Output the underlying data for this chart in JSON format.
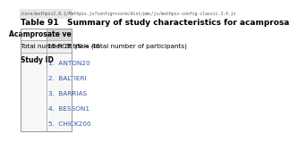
{
  "title": "Table 91   Summary of study characteristics for acamprosa",
  "header_col": "Acamprosate ve",
  "row1_label": "Total number of trials (total number of participants)",
  "row1_value": "19 RCTs (N = 46",
  "row2_label": "Study ID",
  "study_ids": [
    "1.  ANTON20",
    "2.  BALTIERI",
    "3.  BARRIAS",
    "4.  BESSON1",
    "5.  CHICK200"
  ],
  "url_text": "/core/mathpix2.8.1/Mathpix.js?config=+core/dist/pmc/js/mathpix-config-classic.3.4.js",
  "bg_color": "#f0f0f0",
  "header_bg": "#d0d0d0",
  "border_color": "#999999",
  "title_fontsize": 6.5,
  "cell_fontsize": 5.5,
  "url_fontsize": 3.5
}
